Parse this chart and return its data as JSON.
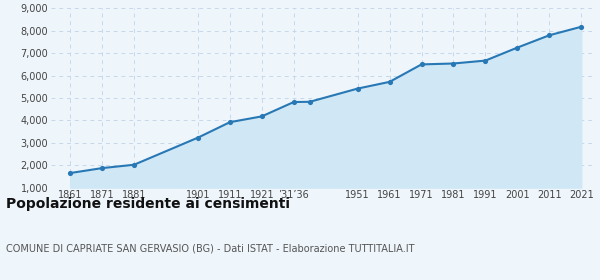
{
  "years": [
    1861,
    1871,
    1881,
    1901,
    1911,
    1921,
    1931,
    1936,
    1951,
    1961,
    1971,
    1981,
    1991,
    2001,
    2011,
    2021
  ],
  "population": [
    1650,
    1870,
    2020,
    3230,
    3920,
    4180,
    4820,
    4830,
    5420,
    5720,
    6500,
    6540,
    6670,
    7250,
    7800,
    8180
  ],
  "x_tick_positions": [
    1861,
    1871,
    1881,
    1901,
    1911,
    1921,
    1931,
    1951,
    1961,
    1971,
    1981,
    1991,
    2001,
    2011,
    2021
  ],
  "x_tick_labels": [
    "1861",
    "1871",
    "1881",
    "1901",
    "1911",
    "1921",
    "’31’36",
    "1951",
    "1961",
    "1971",
    "1981",
    "1991",
    "2001",
    "2011",
    "2021"
  ],
  "ylim": [
    1000,
    9000
  ],
  "yticks": [
    1000,
    2000,
    3000,
    4000,
    5000,
    6000,
    7000,
    8000,
    9000
  ],
  "line_color": "#2878b5",
  "fill_color": "#d0e8f5",
  "marker_color": "#2878b5",
  "bg_color": "#eef5fb",
  "grid_color": "#c5d8ea",
  "title": "Popolazione residente ai censimenti",
  "subtitle": "COMUNE DI CAPRIATE SAN GERVASIO (BG) - Dati ISTAT - Elaborazione TUTTITALIA.IT",
  "title_fontsize": 10,
  "subtitle_fontsize": 7
}
